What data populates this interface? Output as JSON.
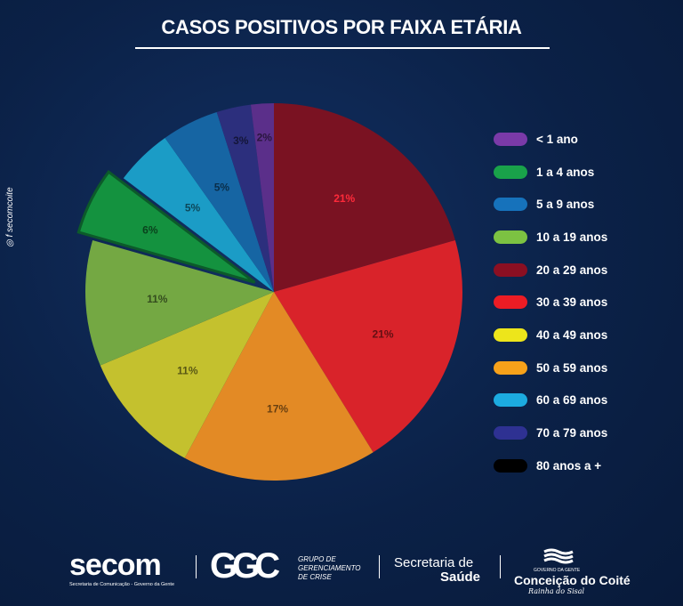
{
  "chart_data": {
    "type": "pie",
    "title": "CASOS POSITIVOS POR FAIXA ETÁRIA",
    "slices": [
      {
        "label": "20 a 29 anos",
        "value": 21,
        "display": "21%",
        "color": "#7a1222",
        "legend_color": "#8b0f22"
      },
      {
        "label": "30 a 39 anos",
        "value": 21,
        "display": "21%",
        "color": "#d9232a",
        "legend_color": "#ec1c24"
      },
      {
        "label": "50 a 59 anos",
        "value": 17,
        "display": "17%",
        "color": "#e38a25",
        "legend_color": "#f7a11a"
      },
      {
        "label": "40 a 49 anos",
        "value": 11,
        "display": "11%",
        "color": "#c4c12e",
        "legend_color": "#ede51b"
      },
      {
        "label": "10 a 19 anos",
        "value": 11,
        "display": "11%",
        "color": "#74a843",
        "legend_color": "#7cc242"
      },
      {
        "label": "1 a 4 anos",
        "value": 6,
        "display": "6%",
        "color": "#14923f",
        "legend_color": "#19a24a",
        "exploded": true
      },
      {
        "label": "60 a 69 anos",
        "value": 5,
        "display": "5%",
        "color": "#1b9cc6",
        "legend_color": "#1cabe0"
      },
      {
        "label": "5 a 9 anos",
        "value": 5,
        "display": "5%",
        "color": "#1665a3",
        "legend_color": "#1672bb"
      },
      {
        "label": "70 a 79 anos",
        "value": 3,
        "display": "3%",
        "color": "#2c2f7d",
        "legend_color": "#2e3192"
      },
      {
        "label": "< 1 ano",
        "value": 2,
        "display": "2%",
        "color": "#5b2f8a",
        "legend_color": "#7a3aa8"
      }
    ],
    "legend": [
      "< 1 ano",
      "1 a 4 anos",
      "5 a 9 anos",
      "10 a 19 anos",
      "20 a 29 anos",
      "30 a 39 anos",
      "40 a 49 anos",
      "50 a 59 anos",
      "60 a 69 anos",
      "70 a 79 anos",
      "80 anos a +"
    ],
    "legend_colors": [
      "#7a3aa8",
      "#19a24a",
      "#1672bb",
      "#7cc242",
      "#8b0f22",
      "#ec1c24",
      "#ede51b",
      "#f7a11a",
      "#1cabe0",
      "#2e3192",
      "#000000"
    ],
    "legend_position": "right"
  },
  "side_handle": "secomcoite",
  "footer": {
    "secom": "secom",
    "secom_sub": "Secretaria de Comunicação - Governo da Gente",
    "gcc": "GGC",
    "gcc_text": [
      "GRUPO DE",
      "GERENCIAMENTO",
      "DE CRISE"
    ],
    "sec1": "Secretaria de",
    "sec2": "Saúde",
    "cc_gov": "GOVERNO DA GENTE",
    "cc": "Conceição do Coité",
    "cc_sub": "Rainha do Sisal"
  }
}
